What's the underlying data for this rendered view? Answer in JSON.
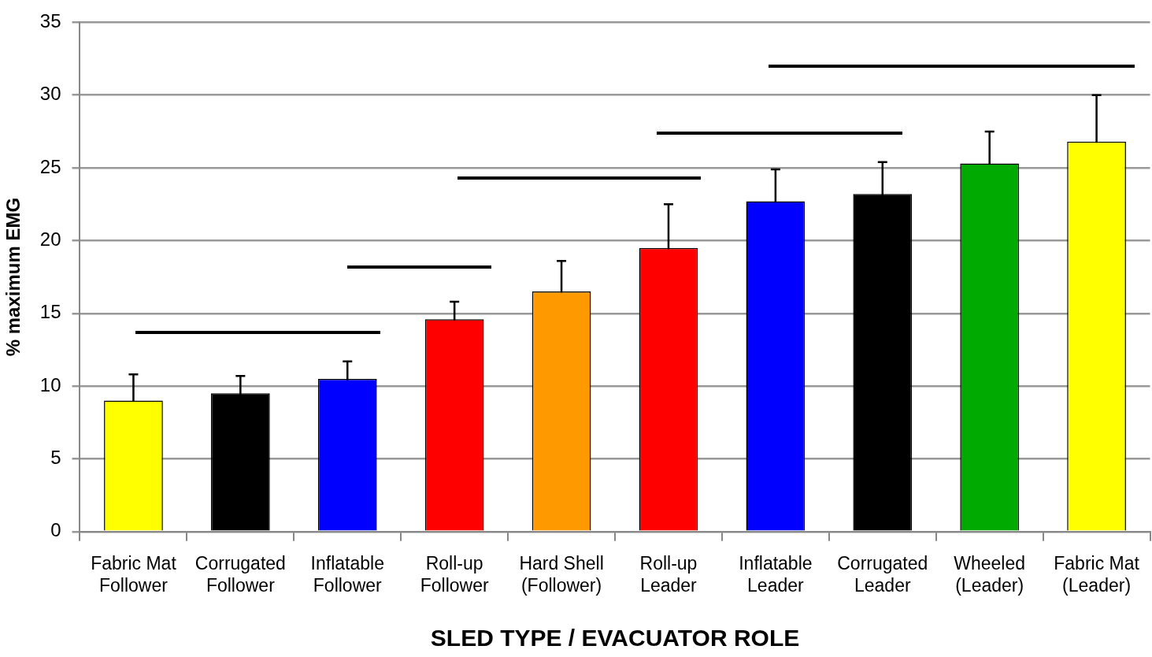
{
  "chart_data": {
    "type": "bar",
    "xlabel": "SLED TYPE / EVACUATOR ROLE",
    "ylabel": "% maximum EMG",
    "categories": [
      "Fabric Mat Follower",
      "Corrugated Follower",
      "Inflatable Follower",
      "Roll-up Follower",
      "Hard Shell (Follower)",
      "Roll-up Leader",
      "Inflatable Leader",
      "Corrugated Leader",
      "Wheeled (Leader)",
      "Fabric Mat (Leader)"
    ],
    "values": [
      9.0,
      9.5,
      10.5,
      14.6,
      16.5,
      19.5,
      22.7,
      23.2,
      25.3,
      26.8
    ],
    "errors": [
      1.8,
      1.2,
      1.2,
      1.2,
      2.1,
      3.0,
      2.2,
      2.2,
      2.2,
      3.2
    ],
    "colors": [
      "#ffff00",
      "#000000",
      "#0000ff",
      "#ff0000",
      "#ff9900",
      "#ff0000",
      "#0000ff",
      "#000000",
      "#00aa00",
      "#ffff00"
    ],
    "ylim": [
      0,
      35
    ],
    "yticks": [
      0,
      5,
      10,
      15,
      20,
      25,
      30,
      35
    ],
    "grid": "y",
    "legend": false
  }
}
